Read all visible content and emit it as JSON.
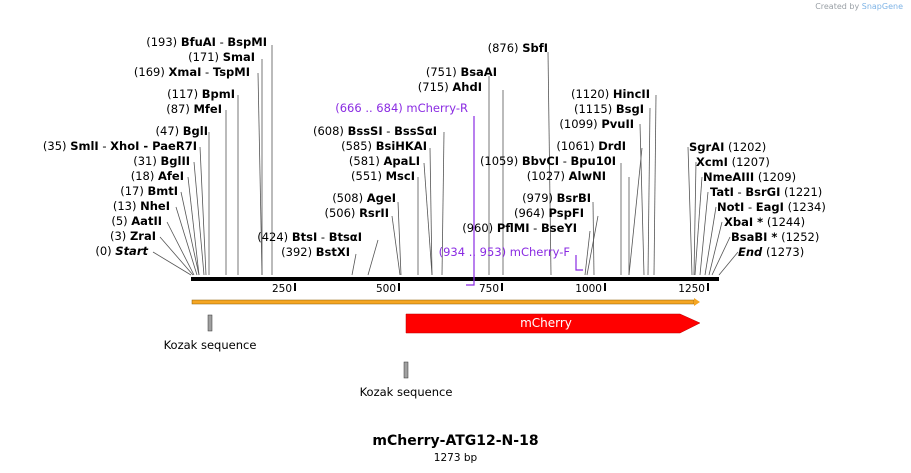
{
  "credit": {
    "prefix": "Created by",
    "brand": "SnapGene"
  },
  "plasmid": {
    "name": "mCherry-ATG12-N-18",
    "length_label": "1273 bp",
    "length": 1273
  },
  "ruler": {
    "ticks": [
      "250",
      "500",
      "750",
      "1000",
      "1250"
    ]
  },
  "sites_left": [
    {
      "pos": "(193)",
      "name": "BfuAI",
      "alt": "BspMI"
    },
    {
      "pos": "(171)",
      "name": "SmaI",
      "alt": ""
    },
    {
      "pos": "(169)",
      "name": "XmaI",
      "alt": "TspMI"
    },
    {
      "pos": "(117)",
      "name": "BpmI",
      "alt": ""
    },
    {
      "pos": "(87)",
      "name": "MfeI",
      "alt": ""
    },
    {
      "pos": "(47)",
      "name": "BglI",
      "alt": ""
    },
    {
      "pos": "(35)",
      "name": "SmlI",
      "alt": "XhoI  -  PaeR7I"
    },
    {
      "pos": "(31)",
      "name": "BglII",
      "alt": ""
    },
    {
      "pos": "(18)",
      "name": "AfeI",
      "alt": ""
    },
    {
      "pos": "(17)",
      "name": "BmtI",
      "alt": ""
    },
    {
      "pos": "(13)",
      "name": "NheI",
      "alt": ""
    },
    {
      "pos": "(5)",
      "name": "AatII",
      "alt": ""
    },
    {
      "pos": "(3)",
      "name": "ZraI",
      "alt": ""
    },
    {
      "pos": "(0)",
      "name": "Start",
      "alt": ""
    }
  ],
  "sites_mid": [
    {
      "pos": "(608)",
      "name": "BssSI",
      "alt": "BssSαI"
    },
    {
      "pos": "(585)",
      "name": "BsiHKAI",
      "alt": ""
    },
    {
      "pos": "(581)",
      "name": "ApaLI",
      "alt": ""
    },
    {
      "pos": "(551)",
      "name": "MscI",
      "alt": ""
    },
    {
      "pos": "(508)",
      "name": "AgeI",
      "alt": ""
    },
    {
      "pos": "(506)",
      "name": "RsrII",
      "alt": ""
    },
    {
      "pos": "(424)",
      "name": "BtsI",
      "alt": "BtsαI"
    },
    {
      "pos": "(392)",
      "name": "BstXI",
      "alt": ""
    },
    {
      "pos": "(876)",
      "name": "SbfI",
      "alt": ""
    },
    {
      "pos": "(751)",
      "name": "BsaAI",
      "alt": ""
    },
    {
      "pos": "(715)",
      "name": "AhdI",
      "alt": ""
    },
    {
      "pos": "(1059)",
      "name": "BbvCI",
      "alt": "Bpu10I"
    },
    {
      "pos": "(1027)",
      "name": "AlwNI",
      "alt": ""
    },
    {
      "pos": "(979)",
      "name": "BsrBI",
      "alt": ""
    },
    {
      "pos": "(964)",
      "name": "PspFI",
      "alt": ""
    },
    {
      "pos": "(960)",
      "name": "PflMI",
      "alt": "BseYI"
    }
  ],
  "sites_right": [
    {
      "pos": "(1120)",
      "name": "HincII"
    },
    {
      "pos": "(1115)",
      "name": "BsgI"
    },
    {
      "pos": "(1099)",
      "name": "PvuII"
    },
    {
      "pos": "(1061)",
      "name": "DrdI"
    },
    {
      "pos": "(1202)",
      "name": "SgrAI"
    },
    {
      "pos": "(1207)",
      "name": "XcmI"
    },
    {
      "pos": "(1209)",
      "name": "NmeAIII"
    },
    {
      "pos": "(1221)",
      "name": "TatI",
      "alt": "BsrGI"
    },
    {
      "pos": "(1234)",
      "name": "NotI",
      "alt": "EagI"
    },
    {
      "pos": "(1244)",
      "name": "XbaI *"
    },
    {
      "pos": "(1252)",
      "name": "BsaBI *"
    },
    {
      "pos": "(1273)",
      "name": "End"
    }
  ],
  "primers": [
    {
      "range": "(666 .. 684)",
      "name": "mCherry-R"
    },
    {
      "range": "(934 .. 953)",
      "name": "mCherry-F"
    }
  ],
  "features": {
    "mcherry": "mCherry",
    "kozak1": "Kozak sequence",
    "kozak2": "Kozak sequence"
  },
  "colors": {
    "primer": "#8a2be2",
    "feature": "#ff0000",
    "orf": "#f5a623",
    "tick": "#000000"
  }
}
